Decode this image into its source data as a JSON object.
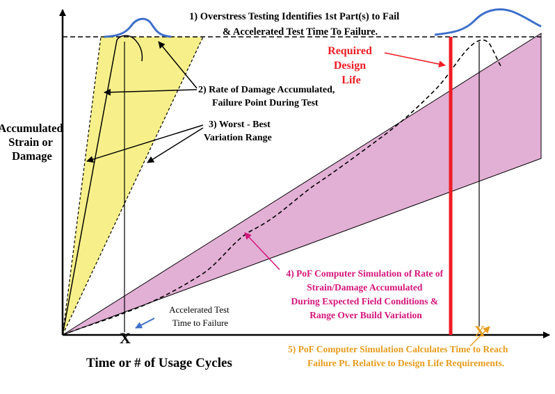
{
  "labels": {
    "y_axis": [
      "Accumulated",
      "Strain or",
      "Damage"
    ],
    "x_axis": "Time or # of Usage Cycles",
    "note1": [
      "1) Overstress Testing Identifies 1st Part(s) to Fail",
      "& Accelerated Test Time To Failure."
    ],
    "note2": [
      "2) Rate of Damage Accumulated,",
      "Failure Point During Test"
    ],
    "note3": [
      "3) Worst - Best",
      "Variation Range"
    ],
    "required": [
      "Required",
      "Design",
      "Life"
    ],
    "accel": [
      "Accelerated Test",
      "Time to Failure"
    ],
    "note4": [
      "4) PoF Computer Simulation of Rate of",
      "Strain/Damage Accumulated",
      "During Expected Field Conditions &",
      "Range Over Build Variation"
    ],
    "note5": [
      "5) PoF Computer Simulation Calculates Time to Reach",
      "Failure Pt. Relative to Design Life Requirements."
    ],
    "x_marker": "X"
  },
  "colors": {
    "axis": "#000000",
    "yellow_fill": "#f7f08a",
    "pink_fill": "#e2afd5",
    "distribution": "#3d6fc9",
    "design_life": "#ee1c24",
    "magenta_text": "#d4157a",
    "orange_text": "#e79b1c",
    "blue_arrow": "#3d6fc9"
  }
}
